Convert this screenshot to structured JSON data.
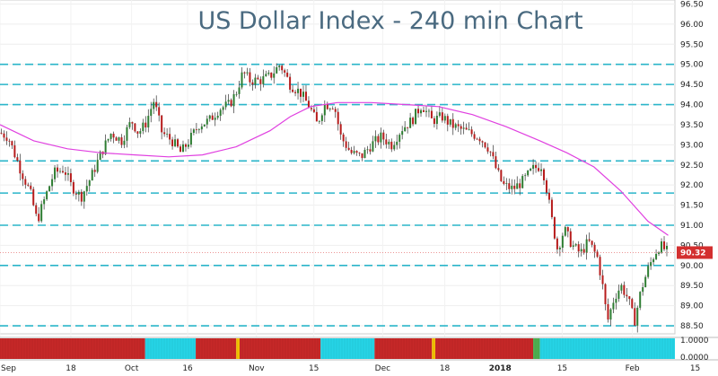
{
  "chart_data": {
    "type": "candlestick",
    "title": "US Dollar Index - 240 min Chart",
    "ylim": [
      88.3,
      96.6
    ],
    "y_ticks": [
      "96.50",
      "96.00",
      "95.50",
      "95.00",
      "94.50",
      "94.00",
      "93.50",
      "93.00",
      "92.50",
      "92.00",
      "91.50",
      "91.00",
      "90.50",
      "90.00",
      "89.50",
      "89.00",
      "88.50"
    ],
    "x_ticks": [
      {
        "label": "Sep",
        "pos": 0.0
      },
      {
        "label": "18",
        "pos": 0.105
      },
      {
        "label": "Oct",
        "pos": 0.195
      },
      {
        "label": "16",
        "pos": 0.278
      },
      {
        "label": "Nov",
        "pos": 0.38
      },
      {
        "label": "15",
        "pos": 0.465
      },
      {
        "label": "Dec",
        "pos": 0.567
      },
      {
        "label": "18",
        "pos": 0.659
      },
      {
        "label": "2018",
        "pos": 0.741
      },
      {
        "label": "15",
        "pos": 0.833
      },
      {
        "label": "Feb",
        "pos": 0.937
      },
      {
        "label": "15",
        "pos": 1.03
      }
    ],
    "horizontal_levels": [
      95.0,
      94.5,
      94.0,
      92.6,
      91.8,
      91.0,
      90.0,
      88.5
    ],
    "current_price": {
      "value": 90.32,
      "label": "90.32"
    },
    "moving_average_color": "#e040e0",
    "level_color": "#2ab5c9",
    "up_color": "#2e7d32",
    "down_color": "#b71c1c",
    "price_series": [
      [
        0.0,
        93.3
      ],
      [
        0.012,
        93.2
      ],
      [
        0.03,
        92.4
      ],
      [
        0.045,
        91.8
      ],
      [
        0.055,
        91.1
      ],
      [
        0.065,
        91.6
      ],
      [
        0.08,
        92.3
      ],
      [
        0.095,
        92.4
      ],
      [
        0.105,
        92.0
      ],
      [
        0.12,
        91.7
      ],
      [
        0.135,
        92.2
      ],
      [
        0.15,
        92.8
      ],
      [
        0.165,
        93.3
      ],
      [
        0.18,
        93.1
      ],
      [
        0.195,
        93.6
      ],
      [
        0.205,
        93.3
      ],
      [
        0.215,
        93.5
      ],
      [
        0.228,
        94.1
      ],
      [
        0.24,
        93.3
      ],
      [
        0.255,
        93.1
      ],
      [
        0.268,
        92.8
      ],
      [
        0.28,
        93.1
      ],
      [
        0.295,
        93.5
      ],
      [
        0.31,
        93.6
      ],
      [
        0.325,
        93.9
      ],
      [
        0.34,
        94.0
      ],
      [
        0.35,
        94.3
      ],
      [
        0.36,
        94.8
      ],
      [
        0.37,
        94.6
      ],
      [
        0.385,
        94.6
      ],
      [
        0.4,
        94.7
      ],
      [
        0.415,
        95.0
      ],
      [
        0.43,
        94.5
      ],
      [
        0.445,
        94.3
      ],
      [
        0.46,
        93.9
      ],
      [
        0.47,
        93.5
      ],
      [
        0.48,
        94.0
      ],
      [
        0.495,
        94.0
      ],
      [
        0.505,
        93.2
      ],
      [
        0.52,
        92.8
      ],
      [
        0.535,
        92.7
      ],
      [
        0.55,
        93.0
      ],
      [
        0.565,
        93.2
      ],
      [
        0.58,
        93.0
      ],
      [
        0.595,
        93.4
      ],
      [
        0.61,
        93.6
      ],
      [
        0.625,
        94.0
      ],
      [
        0.64,
        93.6
      ],
      [
        0.655,
        93.7
      ],
      [
        0.668,
        93.5
      ],
      [
        0.68,
        93.4
      ],
      [
        0.695,
        93.3
      ],
      [
        0.71,
        93.2
      ],
      [
        0.725,
        92.9
      ],
      [
        0.735,
        92.4
      ],
      [
        0.745,
        92.0
      ],
      [
        0.76,
        91.9
      ],
      [
        0.775,
        92.1
      ],
      [
        0.79,
        92.4
      ],
      [
        0.803,
        92.5
      ],
      [
        0.81,
        91.9
      ],
      [
        0.818,
        91.1
      ],
      [
        0.826,
        90.4
      ],
      [
        0.836,
        90.9
      ],
      [
        0.848,
        90.5
      ],
      [
        0.86,
        90.3
      ],
      [
        0.872,
        90.6
      ],
      [
        0.885,
        90.2
      ],
      [
        0.892,
        89.6
      ],
      [
        0.9,
        88.6
      ],
      [
        0.91,
        89.2
      ],
      [
        0.92,
        89.5
      ],
      [
        0.93,
        89.2
      ],
      [
        0.94,
        88.6
      ],
      [
        0.95,
        89.4
      ],
      [
        0.96,
        89.9
      ],
      [
        0.97,
        90.3
      ],
      [
        0.978,
        90.5
      ],
      [
        0.99,
        90.32
      ]
    ],
    "moving_average": [
      [
        0.0,
        93.5
      ],
      [
        0.05,
        93.1
      ],
      [
        0.1,
        92.9
      ],
      [
        0.15,
        92.8
      ],
      [
        0.2,
        92.75
      ],
      [
        0.25,
        92.7
      ],
      [
        0.3,
        92.75
      ],
      [
        0.35,
        92.95
      ],
      [
        0.4,
        93.35
      ],
      [
        0.43,
        93.7
      ],
      [
        0.46,
        93.95
      ],
      [
        0.5,
        94.05
      ],
      [
        0.55,
        94.05
      ],
      [
        0.6,
        94.0
      ],
      [
        0.65,
        93.95
      ],
      [
        0.7,
        93.75
      ],
      [
        0.75,
        93.45
      ],
      [
        0.8,
        93.1
      ],
      [
        0.84,
        92.8
      ],
      [
        0.88,
        92.45
      ],
      [
        0.92,
        91.85
      ],
      [
        0.96,
        91.1
      ],
      [
        0.99,
        90.75
      ]
    ],
    "indicator": {
      "ticks": [
        "1.0000",
        "0.0000"
      ],
      "segments": [
        {
          "from": 0.0,
          "to": 0.215,
          "color": "#c62828"
        },
        {
          "from": 0.215,
          "to": 0.29,
          "color": "#26d4e6"
        },
        {
          "from": 0.29,
          "to": 0.35,
          "color": "#c62828"
        },
        {
          "from": 0.35,
          "to": 0.355,
          "color": "#f2c200"
        },
        {
          "from": 0.355,
          "to": 0.475,
          "color": "#c62828"
        },
        {
          "from": 0.475,
          "to": 0.555,
          "color": "#26d4e6"
        },
        {
          "from": 0.555,
          "to": 0.64,
          "color": "#c62828"
        },
        {
          "from": 0.64,
          "to": 0.645,
          "color": "#f2c200"
        },
        {
          "from": 0.645,
          "to": 0.79,
          "color": "#c62828"
        },
        {
          "from": 0.79,
          "to": 0.8,
          "color": "#4caf50"
        },
        {
          "from": 0.8,
          "to": 1.0,
          "color": "#26d4e6"
        }
      ]
    }
  }
}
